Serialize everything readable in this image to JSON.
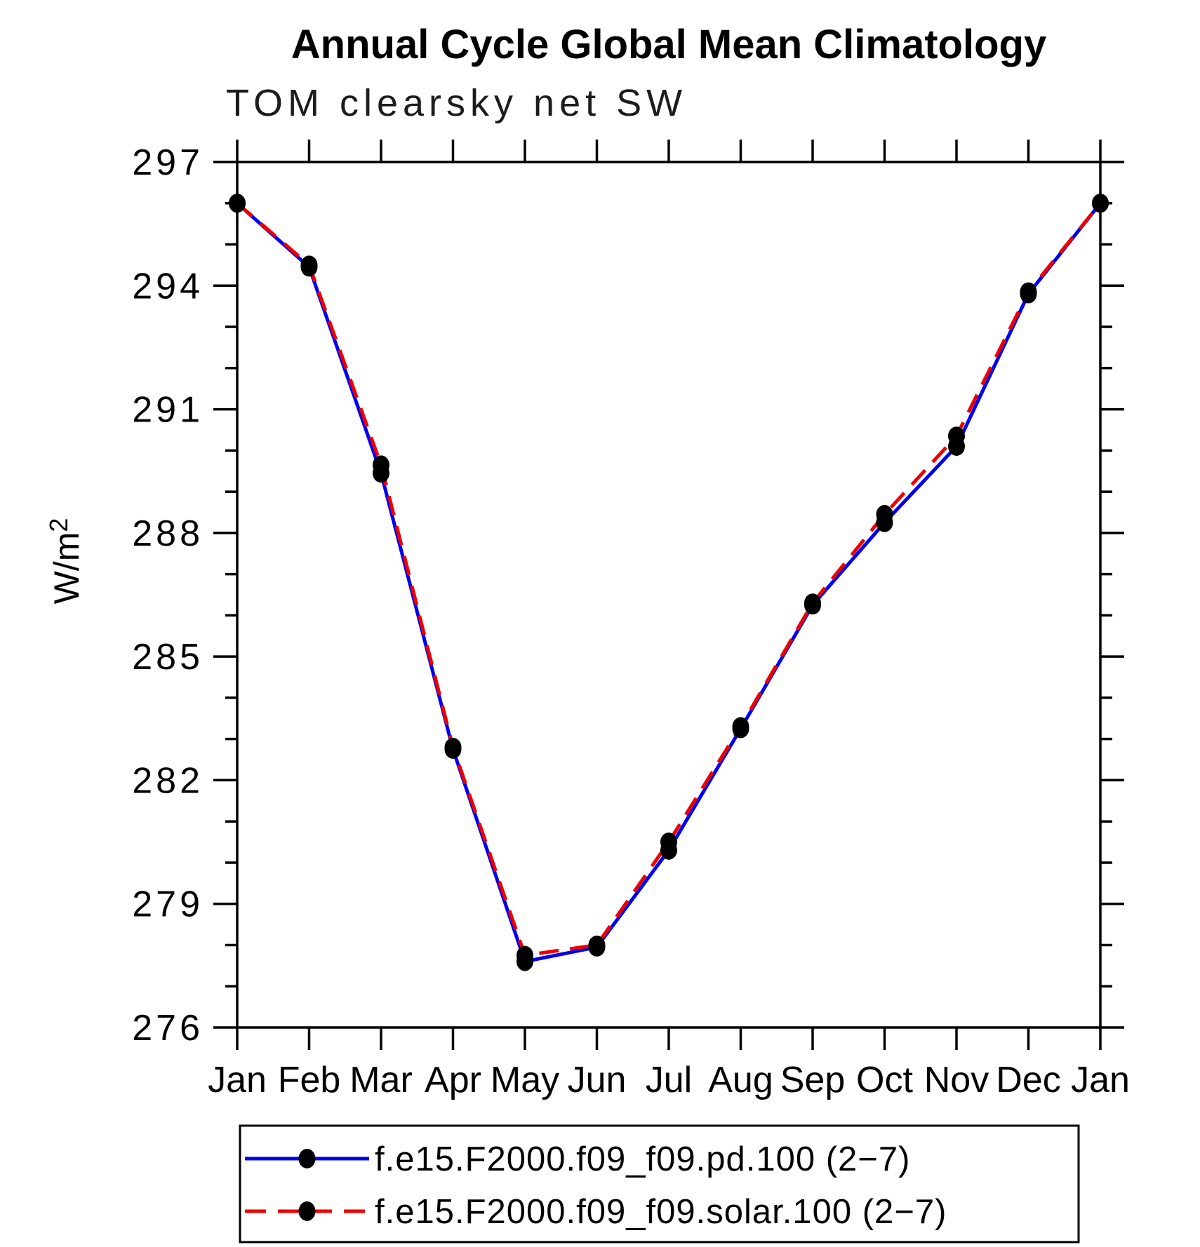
{
  "title": "Annual Cycle Global Mean Climatology",
  "subtitle": "TOM clearsky net SW",
  "chart_data": {
    "type": "line",
    "title": "Annual Cycle Global Mean Climatology",
    "subtitle": "TOM clearsky net SW",
    "x_labels": [
      "Jan",
      "Feb",
      "Mar",
      "Apr",
      "May",
      "Jun",
      "Jul",
      "Aug",
      "Sep",
      "Oct",
      "Nov",
      "Dec",
      "Jan"
    ],
    "ylabel": "W/m",
    "ylabel_superscript": "2",
    "ylim": [
      276,
      297
    ],
    "ytick_major_step": 3,
    "ytick_minor_step": 1,
    "ytick_labels": [
      "276",
      "279",
      "282",
      "285",
      "288",
      "291",
      "294",
      "297"
    ],
    "grid": false,
    "legend_position": "bottom",
    "series": [
      {
        "name": "f.e15.F2000.f09_f09.pd.100 (2−7)",
        "color": "#0000ee",
        "line_style": "solid",
        "marker": "filled-circle",
        "marker_color": "#000000",
        "values": [
          296.0,
          294.45,
          289.45,
          282.75,
          277.6,
          277.95,
          280.3,
          283.25,
          286.25,
          288.25,
          290.1,
          293.8,
          296.0
        ]
      },
      {
        "name": "f.e15.F2000.f09_f09.solar.100 (2−7)",
        "color": "#ee0000",
        "line_style": "dashed",
        "marker": "filled-circle",
        "marker_color": "#000000",
        "values": [
          296.0,
          294.5,
          289.65,
          282.8,
          277.75,
          278.0,
          280.5,
          283.3,
          286.3,
          288.45,
          290.35,
          293.85,
          296.0
        ]
      }
    ]
  },
  "colors": {
    "axis": "#000000",
    "text": "#000000",
    "background": "#ffffff",
    "series_pd": "#0000ee",
    "series_solar": "#ee0000",
    "marker": "#000000"
  }
}
